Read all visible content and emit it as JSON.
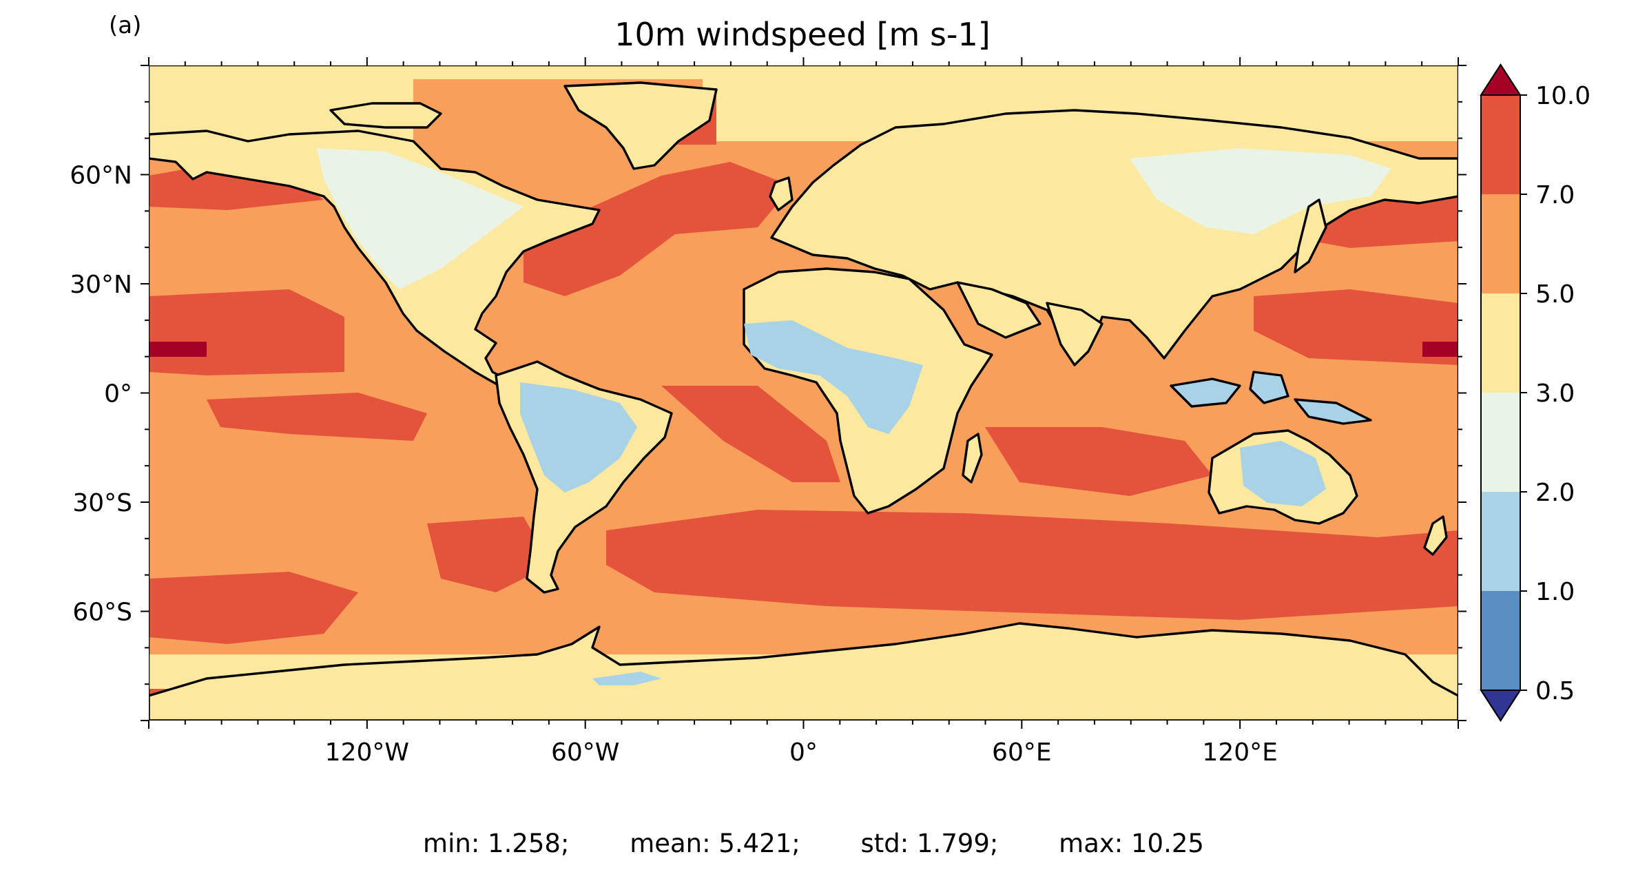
{
  "panel_label": "(a)",
  "title": "10m windspeed [m s-1]",
  "colors": {
    "background": "#ffffff",
    "coast": "#000000",
    "frame": "#000000"
  },
  "chart_data": {
    "type": "heatmap",
    "projection": "plate-carree",
    "lon_range": [
      -180,
      180
    ],
    "lat_range": [
      -90,
      90
    ],
    "x_ticks": [
      {
        "value": -120,
        "label": "120°W"
      },
      {
        "value": -60,
        "label": "60°W"
      },
      {
        "value": 0,
        "label": "0°"
      },
      {
        "value": 60,
        "label": "60°E"
      },
      {
        "value": 120,
        "label": "120°E"
      }
    ],
    "y_ticks": [
      {
        "value": 60,
        "label": "60°N"
      },
      {
        "value": 30,
        "label": "30°N"
      },
      {
        "value": 0,
        "label": "0°"
      },
      {
        "value": -30,
        "label": "30°S"
      },
      {
        "value": -60,
        "label": "60°S"
      }
    ],
    "colorbar": {
      "levels": [
        "0.5",
        "1.0",
        "2.0",
        "3.0",
        "5.0",
        "7.0",
        "10.0"
      ],
      "colors": [
        "#5a8dc2",
        "#a8d2e5",
        "#e9f3e6",
        "#fde89f",
        "#f89f5b",
        "#e4543c"
      ],
      "under_color": "#313695",
      "over_color": "#a50026",
      "extend": "both"
    }
  },
  "stats": [
    {
      "label": "min",
      "text": "min: 1.258;"
    },
    {
      "label": "mean",
      "text": "mean: 5.421;"
    },
    {
      "label": "std",
      "text": "std: 1.799;"
    },
    {
      "label": "max",
      "text": "max: 10.25"
    }
  ]
}
